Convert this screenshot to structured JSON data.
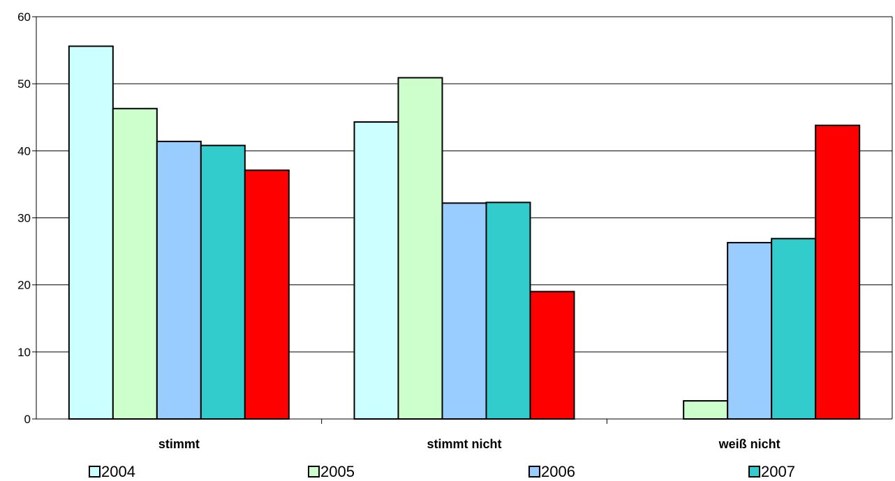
{
  "chart_data": {
    "type": "bar",
    "categories": [
      "stimmt",
      "stimmt nicht",
      "weiß nicht"
    ],
    "series": [
      {
        "name": "2004",
        "values": [
          55.6,
          44.3,
          0
        ],
        "color": "#ccffff"
      },
      {
        "name": "2005",
        "values": [
          46.3,
          50.9,
          2.7
        ],
        "color": "#ccffcc"
      },
      {
        "name": "2006",
        "values": [
          41.4,
          32.2,
          26.3
        ],
        "color": "#99ccff"
      },
      {
        "name": "2007",
        "values": [
          40.8,
          32.3,
          26.9
        ],
        "color": "#33cccc"
      },
      {
        "name": "",
        "values": [
          37.1,
          19.0,
          43.8
        ],
        "color": "#ff0000"
      }
    ],
    "yticks": [
      "0",
      "10",
      "20",
      "30",
      "40",
      "50",
      "60"
    ],
    "ylim": [
      0,
      60
    ],
    "grid": true,
    "legend": "bottom",
    "title": "",
    "xlabel": "",
    "ylabel": ""
  }
}
